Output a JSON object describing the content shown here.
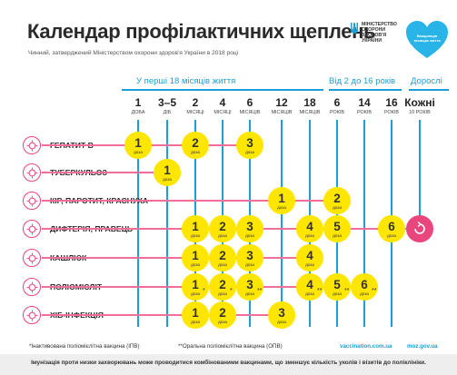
{
  "header": {
    "title": "Календар профілактичних щеплень",
    "subtitle": "Чинний, затверджений Міністерством охорони здоров'я України в 2018 році",
    "moh_text": "Міністерство охорони здоров'я України",
    "heart_text": "Вакцинація захищає життя",
    "brand_color": "#1a9fd7",
    "accent_color": "#e8467c",
    "dose_color": "#ffe600"
  },
  "groups": {
    "infants": "У перші 18 місяців життя",
    "children": "Від 2 до 16 років",
    "adults": "Дорослі"
  },
  "columns": [
    {
      "num": "1",
      "unit": "доба"
    },
    {
      "num": "3–5",
      "unit": "діб"
    },
    {
      "num": "2",
      "unit": "місяці"
    },
    {
      "num": "4",
      "unit": "місяці"
    },
    {
      "num": "6",
      "unit": "місяців"
    },
    {
      "num": "12",
      "unit": "місяців"
    },
    {
      "num": "18",
      "unit": "місяців"
    },
    {
      "num": "6",
      "unit": "років"
    },
    {
      "num": "14",
      "unit": "років"
    },
    {
      "num": "16",
      "unit": "років"
    },
    {
      "num": "Кожні",
      "unit": "10 років"
    }
  ],
  "dose_word": "доза",
  "rows": [
    {
      "label": "Гепатит В",
      "icon": "hepatitis-virus-icon",
      "doses": [
        {
          "col": 0,
          "n": "1"
        },
        {
          "col": 2,
          "n": "2"
        },
        {
          "col": 4,
          "n": "3"
        }
      ]
    },
    {
      "label": "Туберкульоз",
      "icon": "tuberculosis-bacteria-icon",
      "doses": [
        {
          "col": 1,
          "n": "1"
        }
      ]
    },
    {
      "label": "Кір, паротит, краснуха",
      "icon": "measles-virus-icon",
      "doses": [
        {
          "col": 5,
          "n": "1"
        },
        {
          "col": 7,
          "n": "2"
        }
      ]
    },
    {
      "label": "Дифтерія, правець",
      "icon": "diphtheria-bacteria-icon",
      "doses": [
        {
          "col": 2,
          "n": "1"
        },
        {
          "col": 3,
          "n": "2"
        },
        {
          "col": 4,
          "n": "3"
        },
        {
          "col": 6,
          "n": "4"
        },
        {
          "col": 7,
          "n": "5"
        },
        {
          "col": 9,
          "n": "6"
        }
      ],
      "adult": true
    },
    {
      "label": "Кашлюк",
      "icon": "pertussis-bacteria-icon",
      "doses": [
        {
          "col": 2,
          "n": "1"
        },
        {
          "col": 3,
          "n": "2"
        },
        {
          "col": 4,
          "n": "3"
        },
        {
          "col": 6,
          "n": "4"
        }
      ]
    },
    {
      "label": "Поліомієліт",
      "icon": "polio-virus-icon",
      "doses": [
        {
          "col": 2,
          "n": "1",
          "mark": "*"
        },
        {
          "col": 3,
          "n": "2",
          "mark": "*"
        },
        {
          "col": 4,
          "n": "3",
          "mark": "**"
        },
        {
          "col": 6,
          "n": "4",
          "mark": "**"
        },
        {
          "col": 7,
          "n": "5",
          "mark": "**"
        },
        {
          "col": 8,
          "n": "6",
          "mark": "**"
        }
      ]
    },
    {
      "label": "Хіб-інфекція",
      "icon": "hib-bacteria-icon",
      "doses": [
        {
          "col": 2,
          "n": "1"
        },
        {
          "col": 3,
          "n": "2"
        },
        {
          "col": 5,
          "n": "3"
        }
      ]
    }
  ],
  "footer": {
    "note1": "*Інактивована поліомієлітна вакцина (ІПВ)",
    "note2": "**Оральна поліомієлітна вакцина (ОПВ)",
    "link1": "vaccination.com.ua",
    "link2": "moz.gov.ua",
    "bottom": "Імунізація проти низки захворювань може проводитися комбінованими вакцинами, що зменшує кількість уколів і візитів до поліклініки."
  }
}
